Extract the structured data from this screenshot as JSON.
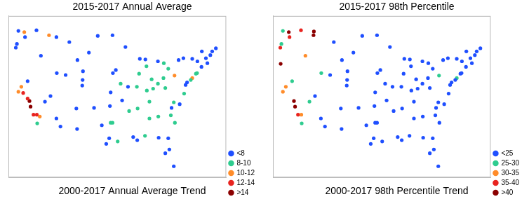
{
  "chart_data": [
    {
      "type": "scatter",
      "title": "2015-2017 Annual Average",
      "subtitle": "2000-2017 Annual Average Trend",
      "xlim": [
        -125,
        -66
      ],
      "ylim": [
        24,
        50
      ],
      "tick_labels": false,
      "grid": false,
      "legend": "lower right",
      "series": [
        {
          "name": "<8",
          "color": "#1f4fff",
          "marker": "circle",
          "values": [
            [
              -122.3,
              47.6
            ],
            [
              -117.4,
              47.7
            ],
            [
              -116.2,
              43.6
            ],
            [
              -112,
              46.6
            ],
            [
              -108.5,
              45.8
            ],
            [
              -106.3,
              42.9
            ],
            [
              -104.8,
              41.1
            ],
            [
              -100.8,
              46.8
            ],
            [
              -96.8,
              46.9
            ],
            [
              -93.3,
              45
            ],
            [
              -89.4,
              43.1
            ],
            [
              -87.9,
              43
            ],
            [
              -84.5,
              42.7
            ],
            [
              -111.9,
              40.8
            ],
            [
              -112,
              33.5
            ],
            [
              -110.9,
              32.2
            ],
            [
              -106.6,
              35.1
            ],
            [
              -104.9,
              39.7
            ],
            [
              -105,
              38.8
            ],
            [
              -101.8,
              35.2
            ],
            [
              -97.5,
              35.5
            ],
            [
              -97.3,
              37.7
            ],
            [
              -95.9,
              41.3
            ],
            [
              -96.7,
              40.8
            ],
            [
              -98.5,
              29.4
            ],
            [
              -97.7,
              30.3
            ],
            [
              -106.4,
              31.8
            ],
            [
              -119.8,
              39.5
            ],
            [
              -115.1,
              36.2
            ],
            [
              -122.7,
              45.5
            ],
            [
              -123,
              44.9
            ],
            [
              -120.5,
              46.6
            ],
            [
              -71.1,
              42.4
            ],
            [
              -72.7,
              41.8
            ],
            [
              -73.8,
              42.7
            ],
            [
              -75.2,
              43.1
            ],
            [
              -77.6,
              43.2
            ],
            [
              -78.9,
              42.9
            ],
            [
              -70.3,
              43.7
            ],
            [
              -69.8,
              44.3
            ],
            [
              -68.8,
              44.8
            ],
            [
              -72.6,
              44.3
            ],
            [
              -71.5,
              43.2
            ],
            [
              -76.6,
              39.3
            ],
            [
              -77,
              38.9
            ],
            [
              -78.6,
              35.8
            ],
            [
              -80.8,
              35.2
            ],
            [
              -81.7,
              30.3
            ],
            [
              -82.5,
              27.9
            ],
            [
              -80.2,
              25.8
            ],
            [
              -81.4,
              28.5
            ],
            [
              -84.3,
              30.4
            ],
            [
              -90.1,
              30
            ],
            [
              -91.2,
              30.5
            ],
            [
              -103.2,
              44.1
            ],
            [
              -109.5,
              40.5
            ],
            [
              -113.6,
              37.1
            ],
            [
              -99.7,
              32.4
            ],
            [
              -94.2,
              36.4
            ],
            [
              -92.6,
              38.6
            ]
          ]
        },
        {
          "name": "8-10",
          "color": "#2ecc8f",
          "marker": "circle",
          "values": [
            [
              -87.6,
              41.9
            ],
            [
              -86.2,
              39.8
            ],
            [
              -84.5,
              39.1
            ],
            [
              -83,
              40
            ],
            [
              -82.5,
              38.4
            ],
            [
              -85.8,
              38.3
            ],
            [
              -86.8,
              36.2
            ],
            [
              -90,
              35.1
            ],
            [
              -92.3,
              34.7
            ],
            [
              -90.2,
              38.6
            ],
            [
              -94.6,
              39.1
            ],
            [
              -84.4,
              33.8
            ],
            [
              -86.8,
              33.5
            ],
            [
              -88,
              30.7
            ],
            [
              -95.4,
              29.8
            ],
            [
              -96.8,
              32.8
            ],
            [
              -81,
              34
            ],
            [
              -79.9,
              32.8
            ],
            [
              -80.2,
              36.1
            ],
            [
              -77.4,
              37.5
            ],
            [
              -74.2,
              40.7
            ],
            [
              -73.9,
              40.8
            ],
            [
              -75.6,
              39.7
            ],
            [
              -82.9,
              42.4
            ],
            [
              -81.7,
              41.5
            ],
            [
              -117.2,
              32.7
            ],
            [
              -89.6,
              40.7
            ],
            [
              -87.5,
              38
            ],
            [
              -97.3,
              32.8
            ]
          ]
        },
        {
          "name": "10-12",
          "color": "#ff8c2a",
          "marker": "circle",
          "values": [
            [
              -80,
              40.4
            ],
            [
              -75.2,
              40
            ],
            [
              -121.5,
              38.6
            ],
            [
              -120.7,
              47.4
            ],
            [
              -114,
              46.9
            ],
            [
              -116.5,
              33.8
            ],
            [
              -122.3,
              37.8
            ]
          ]
        },
        {
          "name": "12-14",
          "color": "#e8231f",
          "marker": "circle",
          "values": [
            [
              -118.2,
              34.1
            ],
            [
              -117.3,
              34.1
            ],
            [
              -119.8,
              36.7
            ],
            [
              -121,
              37.6
            ]
          ]
        },
        {
          "name": ">14",
          "color": "#8b0000",
          "marker": "circle",
          "values": [
            [
              -119,
              35.4
            ],
            [
              -119.3,
              36.3
            ]
          ]
        }
      ]
    },
    {
      "type": "scatter",
      "title": "2015-2017 98th Percentile",
      "subtitle": "2000-2017 98th Percentile Trend",
      "xlim": [
        -125,
        -66
      ],
      "ylim": [
        24,
        50
      ],
      "tick_labels": false,
      "grid": false,
      "legend": "lower right",
      "series": [
        {
          "name": "<25",
          "color": "#1f4fff",
          "marker": "circle",
          "values": [
            [
              -108.5,
              45.8
            ],
            [
              -106.3,
              42.9
            ],
            [
              -104.8,
              41.1
            ],
            [
              -100.8,
              46.8
            ],
            [
              -96.8,
              46.9
            ],
            [
              -93.3,
              45
            ],
            [
              -89.4,
              43.1
            ],
            [
              -87.9,
              43
            ],
            [
              -84.5,
              42.7
            ],
            [
              -112,
              33.5
            ],
            [
              -110.9,
              32.2
            ],
            [
              -106.6,
              35.1
            ],
            [
              -104.9,
              39.7
            ],
            [
              -105,
              38.8
            ],
            [
              -101.8,
              35.2
            ],
            [
              -97.5,
              35.5
            ],
            [
              -97.3,
              37.7
            ],
            [
              -95.9,
              41.3
            ],
            [
              -96.7,
              40.8
            ],
            [
              -98.5,
              29.4
            ],
            [
              -97.7,
              30.3
            ],
            [
              -106.4,
              31.8
            ],
            [
              -71.1,
              42.4
            ],
            [
              -72.7,
              41.8
            ],
            [
              -73.8,
              42.7
            ],
            [
              -75.2,
              43.1
            ],
            [
              -77.6,
              43.2
            ],
            [
              -78.9,
              42.9
            ],
            [
              -70.3,
              43.7
            ],
            [
              -69.8,
              44.3
            ],
            [
              -68.8,
              44.8
            ],
            [
              -72.6,
              44.3
            ],
            [
              -71.5,
              43.2
            ],
            [
              -76.6,
              39.3
            ],
            [
              -77,
              38.9
            ],
            [
              -78.6,
              35.8
            ],
            [
              -80.8,
              35.2
            ],
            [
              -81.7,
              30.3
            ],
            [
              -82.5,
              27.9
            ],
            [
              -80.2,
              25.8
            ],
            [
              -81.4,
              28.5
            ],
            [
              -84.3,
              30.4
            ],
            [
              -90.1,
              30
            ],
            [
              -91.2,
              30.5
            ],
            [
              -87.6,
              41.9
            ],
            [
              -86.2,
              39.8
            ],
            [
              -84.5,
              39.1
            ],
            [
              -83,
              40
            ],
            [
              -82.5,
              38.4
            ],
            [
              -85.8,
              38.3
            ],
            [
              -86.8,
              36.2
            ],
            [
              -90,
              35.1
            ],
            [
              -92.3,
              34.7
            ],
            [
              -90.2,
              38.6
            ],
            [
              -94.6,
              39.1
            ],
            [
              -84.4,
              33.8
            ],
            [
              -86.8,
              33.5
            ],
            [
              -88,
              30.7
            ],
            [
              -95.4,
              29.8
            ],
            [
              -96.8,
              32.8
            ],
            [
              -81,
              34
            ],
            [
              -79.9,
              32.8
            ],
            [
              -80.2,
              36.1
            ],
            [
              -77.4,
              37.5
            ],
            [
              -74.2,
              40.7
            ],
            [
              -73.9,
              40.8
            ],
            [
              -75.6,
              39.7
            ],
            [
              -82.9,
              42.4
            ],
            [
              -81.7,
              41.5
            ],
            [
              -89.6,
              40.7
            ],
            [
              -87.5,
              38
            ],
            [
              -97.3,
              32.8
            ],
            [
              -103.2,
              44.1
            ],
            [
              -109.5,
              40.5
            ],
            [
              -113.6,
              37.1
            ],
            [
              -99.7,
              32.4
            ],
            [
              -94.2,
              36.4
            ],
            [
              -92.6,
              38.6
            ]
          ]
        },
        {
          "name": "25-30",
          "color": "#2ecc8f",
          "marker": "circle",
          "values": [
            [
              -111.9,
              40.8
            ],
            [
              -122.3,
              47.6
            ],
            [
              -117.2,
              32.7
            ],
            [
              -75.2,
              40
            ],
            [
              -80,
              40.4
            ],
            [
              -115.1,
              36.2
            ],
            [
              -122.7,
              45.5
            ],
            [
              -119.8,
              39.5
            ]
          ]
        },
        {
          "name": "30-35",
          "color": "#ff8c2a",
          "marker": "circle",
          "values": [
            [
              -117.3,
              34.1
            ],
            [
              -121.5,
              38.6
            ],
            [
              -122.3,
              37.8
            ],
            [
              -116.2,
              43.6
            ]
          ]
        },
        {
          "name": "35-40",
          "color": "#e8231f",
          "marker": "circle",
          "values": [
            [
              -123,
              44.9
            ],
            [
              -117.4,
              47.7
            ],
            [
              -118.2,
              34.1
            ],
            [
              -120.5,
              46.6
            ]
          ]
        },
        {
          "name": ">40",
          "color": "#8b0000",
          "marker": "circle",
          "values": [
            [
              -119,
              35.4
            ],
            [
              -119.3,
              36.3
            ],
            [
              -114,
              46.9
            ],
            [
              -120.7,
              47.4
            ],
            [
              -122.9,
              42.3
            ],
            [
              -113.9,
              47.5
            ]
          ]
        }
      ]
    }
  ]
}
